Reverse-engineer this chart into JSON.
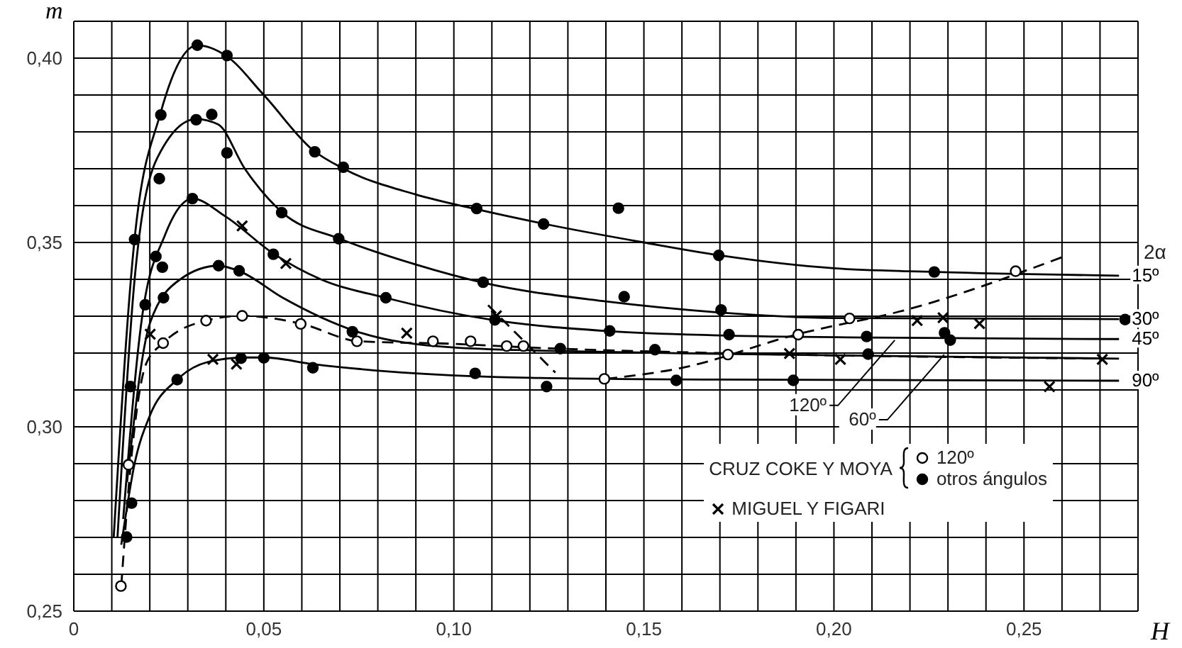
{
  "chart_data": {
    "type": "scatter",
    "xlabel": "H",
    "ylabel": "m",
    "legend_title": "CRUZ COKE Y MOYA",
    "legend": "bottom right",
    "grid": true,
    "xlim": [
      0,
      0.28
    ],
    "ylim": [
      0.25,
      0.41
    ],
    "xticks": [
      {
        "value": 0,
        "label": "0"
      },
      {
        "value": 0.01,
        "label": null
      },
      {
        "value": 0.02,
        "label": null
      },
      {
        "value": 0.03,
        "label": null
      },
      {
        "value": 0.04,
        "label": null
      },
      {
        "value": 0.05,
        "label": "0,05"
      },
      {
        "value": 0.06,
        "label": null
      },
      {
        "value": 0.07,
        "label": null
      },
      {
        "value": 0.08,
        "label": null
      },
      {
        "value": 0.09,
        "label": null
      },
      {
        "value": 0.1,
        "label": "0,10"
      },
      {
        "value": 0.11,
        "label": null
      },
      {
        "value": 0.12,
        "label": null
      },
      {
        "value": 0.13,
        "label": null
      },
      {
        "value": 0.14,
        "label": null
      },
      {
        "value": 0.15,
        "label": "0,15"
      },
      {
        "value": 0.16,
        "label": null
      },
      {
        "value": 0.17,
        "label": null
      },
      {
        "value": 0.18,
        "label": null
      },
      {
        "value": 0.19,
        "label": null
      },
      {
        "value": 0.2,
        "label": "0,20"
      },
      {
        "value": 0.21,
        "label": null
      },
      {
        "value": 0.22,
        "label": null
      },
      {
        "value": 0.23,
        "label": null
      },
      {
        "value": 0.24,
        "label": null
      },
      {
        "value": 0.25,
        "label": "0,25"
      },
      {
        "value": 0.26,
        "label": null
      },
      {
        "value": 0.27,
        "label": null
      }
    ],
    "yticks": [
      {
        "value": 0.25,
        "label": "0,25"
      },
      {
        "value": 0.26,
        "label": null
      },
      {
        "value": 0.27,
        "label": null
      },
      {
        "value": 0.28,
        "label": null
      },
      {
        "value": 0.29,
        "label": null
      },
      {
        "value": 0.3,
        "label": "0,30"
      },
      {
        "value": 0.31,
        "label": null
      },
      {
        "value": 0.32,
        "label": null
      },
      {
        "value": 0.33,
        "label": null
      },
      {
        "value": 0.34,
        "label": null
      },
      {
        "value": 0.35,
        "label": "0,35"
      },
      {
        "value": 0.36,
        "label": null
      },
      {
        "value": 0.37,
        "label": null
      },
      {
        "value": 0.38,
        "label": null
      },
      {
        "value": 0.39,
        "label": null
      },
      {
        "value": 0.4,
        "label": "0,40"
      },
      {
        "value": 0.41,
        "label": null
      }
    ],
    "annotations": [
      "2α",
      {
        "text": "120º",
        "x": 0.216,
        "y": 0.3235
      },
      {
        "text": "60º",
        "x": 0.229,
        "y": 0.3196
      }
    ],
    "series": [
      {
        "type": "line",
        "name": "15º",
        "color": "#000000",
        "line_style": "solid",
        "x": [
          0.0105,
          0.016,
          0.0228,
          0.0325,
          0.04,
          0.05,
          0.063,
          0.071,
          0.09,
          0.106,
          0.124,
          0.15,
          0.17,
          0.2,
          0.227,
          0.275
        ],
        "values": [
          0.27,
          0.351,
          0.385,
          0.4035,
          0.4007,
          0.39,
          0.375,
          0.37,
          0.363,
          0.359,
          0.355,
          0.35,
          0.3465,
          0.343,
          0.342,
          0.341
        ]
      },
      {
        "type": "line",
        "name": "30º",
        "color": "#000000",
        "line_style": "solid",
        "x": [
          0.0115,
          0.016,
          0.022,
          0.0322,
          0.038,
          0.045,
          0.055,
          0.07,
          0.09,
          0.108,
          0.14,
          0.17,
          0.2,
          0.275
        ],
        "values": [
          0.27,
          0.34,
          0.373,
          0.3835,
          0.382,
          0.37,
          0.358,
          0.351,
          0.344,
          0.339,
          0.334,
          0.331,
          0.3295,
          0.3292
        ]
      },
      {
        "type": "line",
        "name": "45º",
        "color": "#000000",
        "line_style": "solid",
        "x": [
          0.013,
          0.018,
          0.024,
          0.0312,
          0.04,
          0.0525,
          0.065,
          0.082,
          0.11,
          0.14,
          0.17,
          0.21,
          0.275
        ],
        "values": [
          0.275,
          0.33,
          0.352,
          0.3619,
          0.357,
          0.347,
          0.34,
          0.335,
          0.329,
          0.326,
          0.3248,
          0.3242,
          0.3238
        ]
      },
      {
        "type": "line",
        "color": "#000000",
        "line_style": "solid",
        "x": [
          0.014,
          0.02,
          0.028,
          0.038,
          0.044,
          0.055,
          0.074,
          0.1,
          0.13,
          0.17,
          0.23,
          0.275
        ],
        "values": [
          0.285,
          0.328,
          0.34,
          0.3437,
          0.342,
          0.335,
          0.326,
          0.3215,
          0.3205,
          0.3198,
          0.319,
          0.3185
        ]
      },
      {
        "type": "line",
        "color": "#000000",
        "line_style": "dashed",
        "x": [
          0.0125,
          0.015,
          0.019,
          0.0235,
          0.0348,
          0.0443,
          0.06,
          0.075,
          0.1,
          0.12,
          0.17,
          0.27
        ],
        "values": [
          0.257,
          0.29,
          0.317,
          0.3227,
          0.3288,
          0.3301,
          0.3279,
          0.3232,
          0.3225,
          0.3215,
          0.32,
          0.3185
        ]
      },
      {
        "type": "line",
        "name": "90º",
        "color": "#000000",
        "line_style": "solid",
        "x": [
          0.0125,
          0.016,
          0.02,
          0.0272,
          0.035,
          0.045,
          0.05,
          0.063,
          0.09,
          0.12,
          0.17,
          0.275
        ],
        "values": [
          0.268,
          0.29,
          0.303,
          0.3128,
          0.3175,
          0.3188,
          0.3188,
          0.317,
          0.3145,
          0.3133,
          0.3128,
          0.3125
        ]
      },
      {
        "type": "line",
        "color": "#000000",
        "line_style": "dashed",
        "x": [
          0.14,
          0.16,
          0.19,
          0.22,
          0.26
        ],
        "values": [
          0.313,
          0.316,
          0.325,
          0.332,
          0.346
        ]
      },
      {
        "type": "line",
        "color": "#000000",
        "line_style": "dashed",
        "x": [
          0.109,
          0.1267
        ],
        "values": [
          0.333,
          0.3147
        ]
      },
      {
        "type": "scatter",
        "name": "120º",
        "marker": "circle",
        "color": "#ffffff",
        "x": [
          0.0124,
          0.0144,
          0.0235,
          0.0348,
          0.0443,
          0.0597,
          0.0745,
          0.0945,
          0.1044,
          0.1139,
          0.1183,
          0.1396,
          0.1721,
          0.1906,
          0.2041,
          0.2478
        ],
        "values": [
          0.2568,
          0.2897,
          0.3227,
          0.3288,
          0.3301,
          0.3279,
          0.3232,
          0.3232,
          0.3232,
          0.3219,
          0.3219,
          0.313,
          0.3196,
          0.325,
          0.3294,
          0.3422
        ]
      },
      {
        "type": "scatter",
        "name": "otros ángulos",
        "marker": "circle",
        "color": "#000000",
        "x": [
          0.016,
          0.0225,
          0.0229,
          0.0325,
          0.0403,
          0.0634,
          0.0709,
          0.106,
          0.1236,
          0.1433,
          0.1697,
          0.2264,
          0.0216,
          0.0233,
          0.0322,
          0.0363,
          0.0403,
          0.0547,
          0.0697,
          0.1077,
          0.1448,
          0.1703,
          0.2766,
          0.0188,
          0.0236,
          0.0312,
          0.0525,
          0.0821,
          0.1108,
          0.141,
          0.1724,
          0.2086,
          0.2291,
          0.2306,
          0.0381,
          0.0435,
          0.0733,
          0.128,
          0.1529,
          0.209,
          0.0149,
          0.0152,
          0.0139,
          0.0272,
          0.044,
          0.05,
          0.0629,
          0.1056,
          0.1244,
          0.1585,
          0.1893
        ],
        "values": [
          0.3508,
          0.3673,
          0.3846,
          0.4035,
          0.4007,
          0.3746,
          0.3704,
          0.3592,
          0.355,
          0.3593,
          0.3465,
          0.342,
          0.3462,
          0.3433,
          0.3833,
          0.3847,
          0.3743,
          0.3581,
          0.351,
          0.3392,
          0.3353,
          0.3317,
          0.3291,
          0.3331,
          0.335,
          0.3619,
          0.3468,
          0.335,
          0.329,
          0.326,
          0.325,
          0.3245,
          0.3255,
          0.3235,
          0.3437,
          0.3423,
          0.3258,
          0.3212,
          0.3209,
          0.3197,
          0.3109,
          0.2793,
          0.2701,
          0.3128,
          0.3186,
          0.3187,
          0.316,
          0.3145,
          0.3109,
          0.3126,
          0.3126
        ]
      },
      {
        "type": "scatter",
        "name": "MIGUEL Y FIGARI",
        "marker": "cross",
        "color": "#000000",
        "x": [
          0.0443,
          0.0558,
          0.0201,
          0.0366,
          0.0428,
          0.0876,
          0.1112,
          0.2219,
          0.2287,
          0.2383,
          0.1883,
          0.2017,
          0.2567,
          0.2706
        ],
        "values": [
          0.3545,
          0.3443,
          0.3251,
          0.3183,
          0.317,
          0.3254,
          0.3301,
          0.3288,
          0.3296,
          0.328,
          0.3199,
          0.3183,
          0.3109,
          0.3183
        ]
      }
    ]
  }
}
